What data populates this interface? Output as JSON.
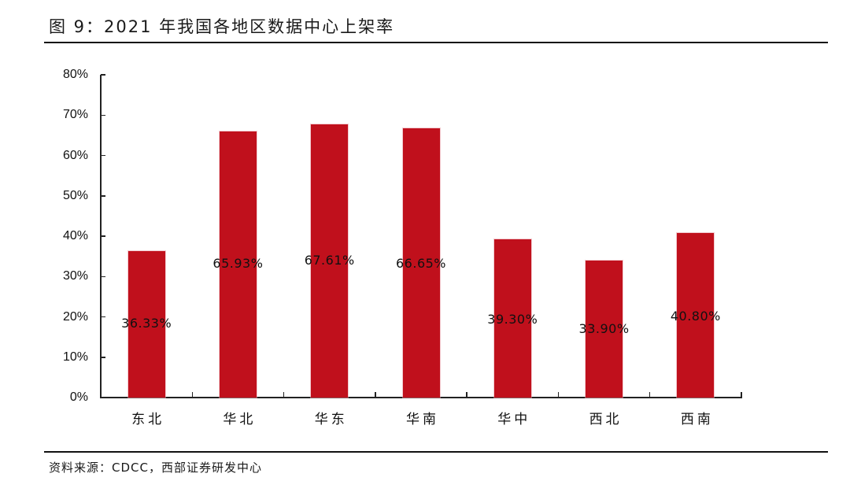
{
  "figure": {
    "title": "图 9：2021 年我国各地区数据中心上架率",
    "source": "资料来源：CDCC，西部证券研发中心"
  },
  "colors": {
    "bar": "#C0101C",
    "axis": "#222222",
    "text": "#111111"
  },
  "chart_data": {
    "type": "bar",
    "title": "2021 年我国各地区数据中心上架率",
    "xlabel": "",
    "ylabel": "",
    "categories": [
      "东北",
      "华北",
      "华东",
      "华南",
      "华中",
      "西北",
      "西南"
    ],
    "values": [
      36.33,
      65.93,
      67.61,
      66.65,
      39.3,
      33.9,
      40.8
    ],
    "value_labels": [
      "36.33%",
      "65.93%",
      "67.61%",
      "66.65%",
      "39.30%",
      "33.90%",
      "40.80%"
    ],
    "unit": "%",
    "ylim": [
      0,
      80
    ],
    "yticks": [
      0,
      10,
      20,
      30,
      40,
      50,
      60,
      70,
      80
    ],
    "ytick_labels": [
      "0%",
      "10%",
      "20%",
      "30%",
      "40%",
      "50%",
      "60%",
      "70%",
      "80%"
    ],
    "grid": false,
    "legend": null,
    "bar_color": "#C0101C"
  }
}
